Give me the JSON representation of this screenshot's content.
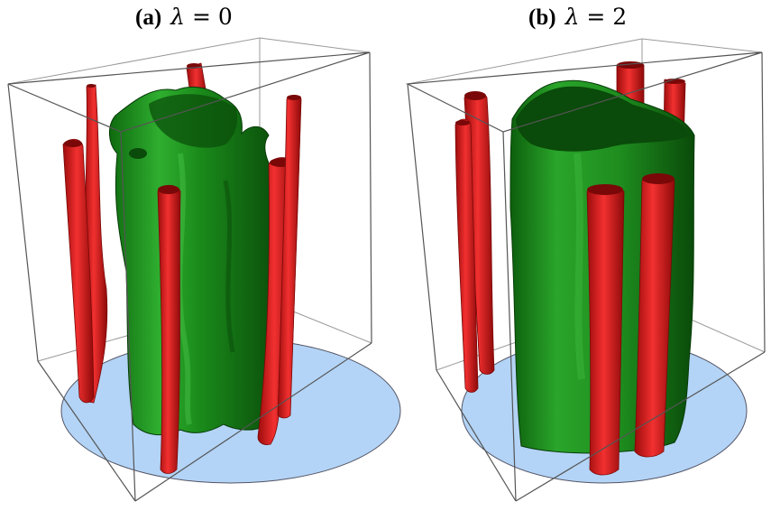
{
  "panels": [
    {
      "tag": "(a)",
      "symbol": "λ",
      "equals": "=",
      "value": "0"
    },
    {
      "tag": "(b)",
      "symbol": "λ",
      "equals": "=",
      "value": "2"
    }
  ],
  "colors": {
    "outer_surface": "#1e8c1e",
    "outer_surface_dark": "#0b4f0b",
    "inner_surface": "#e41d1d",
    "inner_surface_dark": "#8e0a0a",
    "base_disk": "#b3d4f6",
    "box_edges": "#777777"
  }
}
